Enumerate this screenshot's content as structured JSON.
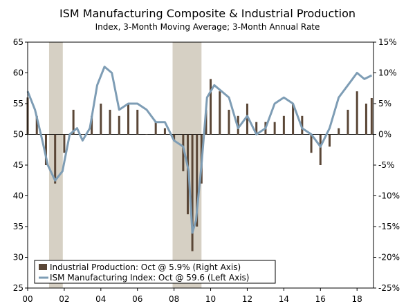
{
  "chart_data": {
    "type": "bar+line",
    "title": "ISM Manufacturing Composite & Industrial Production",
    "subtitle": "Index, 3-Month Moving Average; 3-Month Annual Rate",
    "x_ticks": [
      "00",
      "02",
      "04",
      "06",
      "08",
      "10",
      "12",
      "14",
      "16",
      "18"
    ],
    "x_range": [
      2000.0,
      2018.9
    ],
    "left_axis": {
      "ylim": [
        25,
        65
      ],
      "ticks": [
        "65",
        "60",
        "55",
        "50",
        "45",
        "40",
        "35",
        "30",
        "25"
      ]
    },
    "right_axis": {
      "ylim": [
        -25,
        15
      ],
      "ticks": [
        "15%",
        "10%",
        "5%",
        "0%",
        "-5%",
        "-10%",
        "-15%",
        "-20%",
        "-25%"
      ]
    },
    "recessions": [
      [
        2001.17,
        2001.92
      ],
      [
        2007.92,
        2009.5
      ]
    ],
    "series": [
      {
        "name": "Industrial Production: Oct @ 5.9% (Right Axis)",
        "type": "bar",
        "axis": "right",
        "color": "#5a4636",
        "x": [
          2000.0,
          2000.5,
          2001.0,
          2001.5,
          2002.0,
          2002.5,
          2003.0,
          2003.5,
          2004.0,
          2004.5,
          2005.0,
          2005.5,
          2006.0,
          2006.5,
          2007.0,
          2007.5,
          2008.0,
          2008.5,
          2008.75,
          2009.0,
          2009.25,
          2009.5,
          2009.75,
          2010.0,
          2010.5,
          2011.0,
          2011.5,
          2012.0,
          2012.5,
          2013.0,
          2013.5,
          2014.0,
          2014.5,
          2015.0,
          2015.5,
          2016.0,
          2016.5,
          2017.0,
          2017.5,
          2018.0,
          2018.5,
          2018.8
        ],
        "values": [
          6,
          3,
          -5,
          -8,
          -3,
          4,
          0,
          3,
          5,
          4,
          3,
          5,
          4,
          0,
          2,
          1,
          -1,
          -6,
          -13,
          -19,
          -15,
          -8,
          4,
          9,
          7,
          4,
          3,
          5,
          2,
          2,
          2,
          3,
          5,
          3,
          -3,
          -5,
          -2,
          1,
          4,
          7,
          5,
          5.9
        ]
      },
      {
        "name": "ISM Manufacturing Index: Oct @ 59.6 (Left Axis)",
        "type": "line",
        "axis": "left",
        "color": "#7e9db5",
        "x": [
          2000.0,
          2000.4,
          2000.8,
          2001.1,
          2001.5,
          2001.9,
          2002.3,
          2002.7,
          2003.0,
          2003.4,
          2003.8,
          2004.2,
          2004.6,
          2005.0,
          2005.5,
          2006.0,
          2006.5,
          2007.0,
          2007.5,
          2008.0,
          2008.5,
          2008.8,
          2009.0,
          2009.2,
          2009.5,
          2009.8,
          2010.2,
          2010.6,
          2011.0,
          2011.5,
          2012.0,
          2012.5,
          2013.0,
          2013.5,
          2014.0,
          2014.5,
          2015.0,
          2015.5,
          2016.0,
          2016.5,
          2017.0,
          2017.5,
          2018.0,
          2018.4,
          2018.8
        ],
        "values": [
          57,
          54,
          49,
          45,
          42.5,
          44,
          50,
          51,
          49,
          51,
          58,
          61,
          60,
          54,
          55,
          55,
          54,
          52,
          52,
          49,
          48,
          44,
          34,
          36,
          45,
          56,
          58,
          57,
          56,
          51,
          53,
          50,
          51,
          55,
          56,
          55,
          51,
          50,
          48,
          51,
          56,
          58,
          60,
          59,
          59.6
        ]
      }
    ],
    "legend_position": "bottom-left"
  }
}
